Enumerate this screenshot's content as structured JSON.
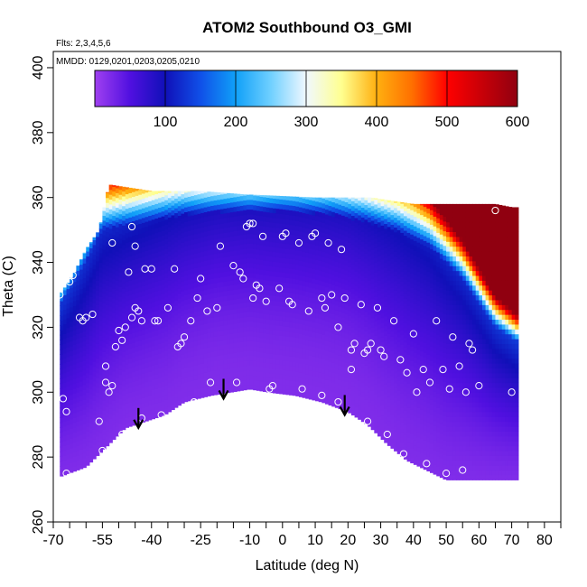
{
  "chart_data": {
    "type": "heatmap",
    "title": "ATOM2 Southbound O3_GMI",
    "flights_note": "Flts: 2,3,4,5,6",
    "dates_note": "MMDD: 0129,0201,0203,0205,0210",
    "xlabel": "Latitude (deg N)",
    "ylabel": "Theta (C)",
    "xlim": [
      -70,
      85
    ],
    "ylim": [
      260,
      405
    ],
    "x_ticks": [
      -70,
      -55,
      -40,
      -25,
      -10,
      0,
      10,
      20,
      30,
      40,
      50,
      60,
      70,
      80
    ],
    "x_tick_labels": [
      "-70",
      "-55",
      "-40",
      "-25",
      "-10",
      "0",
      "10",
      "20",
      "30",
      "40",
      "50",
      "60",
      "70",
      "80"
    ],
    "x_minor_ticks": [
      -65,
      -60,
      -50,
      -45,
      -35,
      -30,
      -20,
      -15,
      -5,
      5,
      15,
      25,
      35,
      45,
      55,
      65,
      75,
      85
    ],
    "y_ticks": [
      260,
      280,
      300,
      320,
      340,
      360,
      380,
      400
    ],
    "y_tick_labels": [
      "260",
      "280",
      "300",
      "320",
      "340",
      "360",
      "380",
      "400"
    ],
    "colorbar": {
      "min": 0,
      "max": 600,
      "ticks": [
        100,
        200,
        300,
        400,
        500,
        600
      ],
      "tick_labels": [
        "100",
        "200",
        "300",
        "400",
        "500",
        "600"
      ],
      "stops": [
        {
          "v": 0,
          "c": "#a040f0"
        },
        {
          "v": 50,
          "c": "#5010e0"
        },
        {
          "v": 100,
          "c": "#1010b8"
        },
        {
          "v": 150,
          "c": "#1050e8"
        },
        {
          "v": 200,
          "c": "#10a0f8"
        },
        {
          "v": 250,
          "c": "#70d0ff"
        },
        {
          "v": 300,
          "c": "#f0f8ff"
        },
        {
          "v": 350,
          "c": "#ffff90"
        },
        {
          "v": 400,
          "c": "#ffb010"
        },
        {
          "v": 450,
          "c": "#ff7000"
        },
        {
          "v": 500,
          "c": "#ff0000"
        },
        {
          "v": 600,
          "c": "#900010"
        }
      ]
    },
    "field": {
      "lat_range": [
        -68,
        72
      ],
      "lower_boundary": [
        {
          "lat": -68,
          "theta": 274
        },
        {
          "lat": -60,
          "theta": 277
        },
        {
          "lat": -54,
          "theta": 283
        },
        {
          "lat": -48,
          "theta": 289
        },
        {
          "lat": -42,
          "theta": 291
        },
        {
          "lat": -36,
          "theta": 293
        },
        {
          "lat": -30,
          "theta": 297
        },
        {
          "lat": -22,
          "theta": 299
        },
        {
          "lat": -16,
          "theta": 300
        },
        {
          "lat": -10,
          "theta": 301
        },
        {
          "lat": -4,
          "theta": 300
        },
        {
          "lat": 4,
          "theta": 299
        },
        {
          "lat": 12,
          "theta": 297
        },
        {
          "lat": 20,
          "theta": 294
        },
        {
          "lat": 26,
          "theta": 290
        },
        {
          "lat": 32,
          "theta": 284
        },
        {
          "lat": 38,
          "theta": 279
        },
        {
          "lat": 44,
          "theta": 276
        },
        {
          "lat": 50,
          "theta": 273
        },
        {
          "lat": 56,
          "theta": 273
        },
        {
          "lat": 64,
          "theta": 273
        },
        {
          "lat": 72,
          "theta": 273
        }
      ],
      "upper_boundary": [
        {
          "lat": -68,
          "theta": 330
        },
        {
          "lat": -64,
          "theta": 336
        },
        {
          "lat": -60,
          "theta": 344
        },
        {
          "lat": -56,
          "theta": 350
        },
        {
          "lat": -53,
          "theta": 364
        },
        {
          "lat": -40,
          "theta": 362
        },
        {
          "lat": -25,
          "theta": 362
        },
        {
          "lat": -12,
          "theta": 361
        },
        {
          "lat": 10,
          "theta": 360
        },
        {
          "lat": 27,
          "theta": 360
        },
        {
          "lat": 40,
          "theta": 358
        },
        {
          "lat": 55,
          "theta": 358
        },
        {
          "lat": 65,
          "theta": 358
        },
        {
          "lat": 70,
          "theta": 357
        },
        {
          "lat": 71,
          "theta": 357
        }
      ],
      "tropopause": [
        {
          "lat": -68,
          "theta": 326
        },
        {
          "lat": -60,
          "theta": 340
        },
        {
          "lat": -55,
          "theta": 350
        },
        {
          "lat": -45,
          "theta": 352
        },
        {
          "lat": -30,
          "theta": 355
        },
        {
          "lat": -15,
          "theta": 356
        },
        {
          "lat": 0,
          "theta": 356
        },
        {
          "lat": 15,
          "theta": 355
        },
        {
          "lat": 25,
          "theta": 353
        },
        {
          "lat": 35,
          "theta": 350
        },
        {
          "lat": 45,
          "theta": 345
        },
        {
          "lat": 55,
          "theta": 335
        },
        {
          "lat": 65,
          "theta": 320
        },
        {
          "lat": 72,
          "theta": 315
        }
      ]
    },
    "sample_points": [
      {
        "lat": -68,
        "theta": 330
      },
      {
        "lat": -67,
        "theta": 298
      },
      {
        "lat": -66,
        "theta": 294
      },
      {
        "lat": -66,
        "theta": 275
      },
      {
        "lat": -65,
        "theta": 334
      },
      {
        "lat": -64,
        "theta": 336
      },
      {
        "lat": -62,
        "theta": 323
      },
      {
        "lat": -61,
        "theta": 322
      },
      {
        "lat": -60,
        "theta": 323
      },
      {
        "lat": -58,
        "theta": 324
      },
      {
        "lat": -56,
        "theta": 291
      },
      {
        "lat": -55,
        "theta": 282
      },
      {
        "lat": -54,
        "theta": 303
      },
      {
        "lat": -54,
        "theta": 308
      },
      {
        "lat": -53,
        "theta": 300
      },
      {
        "lat": -52,
        "theta": 302
      },
      {
        "lat": -52,
        "theta": 346
      },
      {
        "lat": -51,
        "theta": 314
      },
      {
        "lat": -50,
        "theta": 319
      },
      {
        "lat": -49,
        "theta": 316
      },
      {
        "lat": -49,
        "theta": 287
      },
      {
        "lat": -48,
        "theta": 320
      },
      {
        "lat": -47,
        "theta": 337
      },
      {
        "lat": -46,
        "theta": 351
      },
      {
        "lat": -46,
        "theta": 323
      },
      {
        "lat": -45,
        "theta": 345
      },
      {
        "lat": -45,
        "theta": 326
      },
      {
        "lat": -44,
        "theta": 325
      },
      {
        "lat": -43,
        "theta": 322
      },
      {
        "lat": -43,
        "theta": 292
      },
      {
        "lat": -42,
        "theta": 338
      },
      {
        "lat": -40,
        "theta": 338
      },
      {
        "lat": -39,
        "theta": 322
      },
      {
        "lat": -38,
        "theta": 322
      },
      {
        "lat": -37,
        "theta": 293
      },
      {
        "lat": -35,
        "theta": 326
      },
      {
        "lat": -33,
        "theta": 338
      },
      {
        "lat": -32,
        "theta": 314
      },
      {
        "lat": -31,
        "theta": 315
      },
      {
        "lat": -30,
        "theta": 317
      },
      {
        "lat": -28,
        "theta": 322
      },
      {
        "lat": -27,
        "theta": 297
      },
      {
        "lat": -26,
        "theta": 329
      },
      {
        "lat": -25,
        "theta": 335
      },
      {
        "lat": -23,
        "theta": 325
      },
      {
        "lat": -22,
        "theta": 303
      },
      {
        "lat": -20,
        "theta": 326
      },
      {
        "lat": -19,
        "theta": 345
      },
      {
        "lat": -15,
        "theta": 339
      },
      {
        "lat": -14,
        "theta": 303
      },
      {
        "lat": -13,
        "theta": 337
      },
      {
        "lat": -12,
        "theta": 335
      },
      {
        "lat": -11,
        "theta": 351
      },
      {
        "lat": -10,
        "theta": 352
      },
      {
        "lat": -9,
        "theta": 352
      },
      {
        "lat": -9,
        "theta": 329
      },
      {
        "lat": -8,
        "theta": 333
      },
      {
        "lat": -7,
        "theta": 332
      },
      {
        "lat": -6,
        "theta": 348
      },
      {
        "lat": -5,
        "theta": 328
      },
      {
        "lat": -4,
        "theta": 301
      },
      {
        "lat": -3,
        "theta": 302
      },
      {
        "lat": -1,
        "theta": 332
      },
      {
        "lat": 0,
        "theta": 348
      },
      {
        "lat": 1,
        "theta": 349
      },
      {
        "lat": 2,
        "theta": 328
      },
      {
        "lat": 3,
        "theta": 327
      },
      {
        "lat": 5,
        "theta": 346
      },
      {
        "lat": 6,
        "theta": 301
      },
      {
        "lat": 8,
        "theta": 325
      },
      {
        "lat": 9,
        "theta": 348
      },
      {
        "lat": 10,
        "theta": 349
      },
      {
        "lat": 12,
        "theta": 329
      },
      {
        "lat": 12,
        "theta": 299
      },
      {
        "lat": 13,
        "theta": 326
      },
      {
        "lat": 14,
        "theta": 346
      },
      {
        "lat": 15,
        "theta": 330
      },
      {
        "lat": 17,
        "theta": 320
      },
      {
        "lat": 17,
        "theta": 297
      },
      {
        "lat": 18,
        "theta": 344
      },
      {
        "lat": 19,
        "theta": 329
      },
      {
        "lat": 21,
        "theta": 313
      },
      {
        "lat": 21,
        "theta": 307
      },
      {
        "lat": 22,
        "theta": 315
      },
      {
        "lat": 24,
        "theta": 327
      },
      {
        "lat": 25,
        "theta": 312
      },
      {
        "lat": 26,
        "theta": 291
      },
      {
        "lat": 26,
        "theta": 313
      },
      {
        "lat": 27,
        "theta": 315
      },
      {
        "lat": 29,
        "theta": 326
      },
      {
        "lat": 30,
        "theta": 313
      },
      {
        "lat": 31,
        "theta": 311
      },
      {
        "lat": 32,
        "theta": 287
      },
      {
        "lat": 34,
        "theta": 322
      },
      {
        "lat": 36,
        "theta": 310
      },
      {
        "lat": 37,
        "theta": 281
      },
      {
        "lat": 38,
        "theta": 306
      },
      {
        "lat": 40,
        "theta": 318
      },
      {
        "lat": 41,
        "theta": 300
      },
      {
        "lat": 43,
        "theta": 307
      },
      {
        "lat": 44,
        "theta": 278
      },
      {
        "lat": 45,
        "theta": 303
      },
      {
        "lat": 47,
        "theta": 322
      },
      {
        "lat": 49,
        "theta": 307
      },
      {
        "lat": 50,
        "theta": 275
      },
      {
        "lat": 51,
        "theta": 301
      },
      {
        "lat": 52,
        "theta": 317
      },
      {
        "lat": 54,
        "theta": 308
      },
      {
        "lat": 55,
        "theta": 276
      },
      {
        "lat": 56,
        "theta": 300
      },
      {
        "lat": 57,
        "theta": 315
      },
      {
        "lat": 58,
        "theta": 313
      },
      {
        "lat": 60,
        "theta": 302
      },
      {
        "lat": 65,
        "theta": 356
      },
      {
        "lat": 70,
        "theta": 300
      }
    ],
    "arrows": [
      {
        "lat": -44,
        "theta": 289
      },
      {
        "lat": -18,
        "theta": 298
      },
      {
        "lat": 19,
        "theta": 293
      }
    ]
  }
}
